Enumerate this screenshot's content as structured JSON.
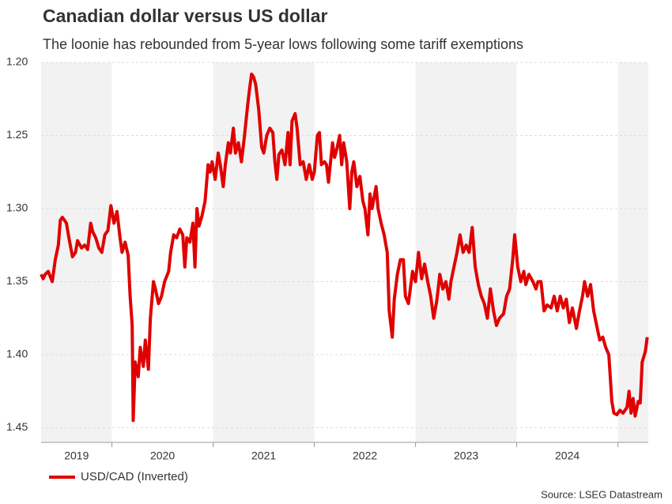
{
  "chart_data": {
    "type": "line",
    "title": "Canadian dollar versus US dollar",
    "subtitle": "The loonie has rebounded from 5-year lows following some tariff exemptions",
    "source": "Source: LSEG Datastream",
    "y_inverted": true,
    "grid": true,
    "legend": "bottom-left",
    "xlim": [
      2019.3,
      2025.3
    ],
    "xticks": [
      2020,
      2021,
      2022,
      2023,
      2024,
      2025
    ],
    "year_labels": [
      "2019",
      "2020",
      "2021",
      "2022",
      "2023",
      "2024"
    ],
    "ylim": [
      1.2,
      1.46
    ],
    "yticks": [
      {
        "value": 1.2,
        "label": "1.20"
      },
      1.25,
      {
        "value": 1.3,
        "label": "1.30"
      },
      1.35,
      {
        "value": 1.4,
        "label": "1.40"
      },
      1.45
    ],
    "x": [
      2019.3,
      2019.32,
      2019.34,
      2019.37,
      2019.41,
      2019.44,
      2019.47,
      2019.49,
      2019.51,
      2019.55,
      2019.58,
      2019.61,
      2019.64,
      2019.66,
      2019.7,
      2019.73,
      2019.76,
      2019.79,
      2019.81,
      2019.84,
      2019.87,
      2019.9,
      2019.93,
      2019.96,
      2019.99,
      2020.02,
      2020.05,
      2020.08,
      2020.1,
      2020.13,
      2020.16,
      2020.18,
      2020.2,
      2020.21,
      2020.23,
      2020.26,
      2020.28,
      2020.31,
      2020.33,
      2020.36,
      2020.38,
      2020.41,
      2020.43,
      2020.46,
      2020.49,
      2020.52,
      2020.56,
      2020.58,
      2020.61,
      2020.64,
      2020.67,
      2020.7,
      2020.72,
      2020.74,
      2020.77,
      2020.8,
      2020.82,
      2020.84,
      2020.86,
      2020.89,
      2020.92,
      2020.95,
      2020.97,
      2020.99,
      2021.02,
      2021.05,
      2021.07,
      2021.1,
      2021.12,
      2021.15,
      2021.17,
      2021.2,
      2021.22,
      2021.25,
      2021.28,
      2021.31,
      2021.34,
      2021.36,
      2021.38,
      2021.4,
      2021.42,
      2021.45,
      2021.48,
      2021.5,
      2021.53,
      2021.56,
      2021.59,
      2021.61,
      2021.63,
      2021.65,
      2021.68,
      2021.71,
      2021.74,
      2021.76,
      2021.78,
      2021.81,
      2021.83,
      2021.86,
      2021.89,
      2021.92,
      2021.95,
      2021.98,
      2022.0,
      2022.03,
      2022.05,
      2022.07,
      2022.1,
      2022.12,
      2022.14,
      2022.18,
      2022.2,
      2022.22,
      2022.25,
      2022.27,
      2022.29,
      2022.32,
      2022.35,
      2022.37,
      2022.39,
      2022.42,
      2022.45,
      2022.48,
      2022.5,
      2022.53,
      2022.55,
      2022.57,
      2022.61,
      2022.63,
      2022.66,
      2022.69,
      2022.72,
      2022.74,
      2022.77,
      2022.79,
      2022.82,
      2022.85,
      2022.88,
      2022.9,
      2022.93,
      2022.97,
      2023.0,
      2023.03,
      2023.06,
      2023.09,
      2023.12,
      2023.15,
      2023.18,
      2023.21,
      2023.24,
      2023.27,
      2023.3,
      2023.33,
      2023.35,
      2023.38,
      2023.41,
      2023.44,
      2023.47,
      2023.5,
      2023.53,
      2023.56,
      2023.59,
      2023.62,
      2023.65,
      2023.68,
      2023.71,
      2023.74,
      2023.77,
      2023.8,
      2023.83,
      2023.87,
      2023.9,
      2023.93,
      2023.96,
      2023.98,
      2024.01,
      2024.04,
      2024.07,
      2024.09,
      2024.12,
      2024.16,
      2024.19,
      2024.21,
      2024.24,
      2024.27,
      2024.3,
      2024.34,
      2024.37,
      2024.4,
      2024.43,
      2024.46,
      2024.49,
      2024.52,
      2024.55,
      2024.59,
      2024.62,
      2024.65,
      2024.67,
      2024.7,
      2024.73,
      2024.76,
      2024.79,
      2024.82,
      2024.85,
      2024.88,
      2024.91,
      2024.94,
      2024.96,
      2024.99,
      2025.02,
      2025.05,
      2025.09,
      2025.11,
      2025.13,
      2025.15,
      2025.17,
      2025.2,
      2025.22,
      2025.24,
      2025.27,
      2025.29
    ],
    "series": [
      {
        "name": "USD/CAD (Inverted)",
        "color": "#e00000",
        "values": [
          1.345,
          1.348,
          1.345,
          1.343,
          1.35,
          1.335,
          1.325,
          1.308,
          1.306,
          1.31,
          1.322,
          1.333,
          1.33,
          1.322,
          1.327,
          1.325,
          1.328,
          1.31,
          1.316,
          1.32,
          1.327,
          1.33,
          1.318,
          1.315,
          1.298,
          1.31,
          1.302,
          1.32,
          1.33,
          1.323,
          1.332,
          1.36,
          1.38,
          1.445,
          1.405,
          1.415,
          1.395,
          1.408,
          1.39,
          1.41,
          1.375,
          1.35,
          1.355,
          1.365,
          1.36,
          1.35,
          1.343,
          1.33,
          1.318,
          1.32,
          1.314,
          1.318,
          1.34,
          1.32,
          1.323,
          1.31,
          1.34,
          1.3,
          1.312,
          1.305,
          1.295,
          1.27,
          1.275,
          1.268,
          1.28,
          1.262,
          1.27,
          1.285,
          1.27,
          1.255,
          1.262,
          1.245,
          1.262,
          1.255,
          1.268,
          1.25,
          1.23,
          1.218,
          1.208,
          1.21,
          1.215,
          1.232,
          1.258,
          1.262,
          1.25,
          1.245,
          1.248,
          1.268,
          1.28,
          1.263,
          1.26,
          1.27,
          1.248,
          1.27,
          1.24,
          1.235,
          1.245,
          1.27,
          1.268,
          1.28,
          1.27,
          1.28,
          1.275,
          1.25,
          1.248,
          1.27,
          1.268,
          1.27,
          1.282,
          1.255,
          1.265,
          1.26,
          1.25,
          1.27,
          1.255,
          1.268,
          1.3,
          1.275,
          1.268,
          1.285,
          1.278,
          1.295,
          1.3,
          1.318,
          1.29,
          1.3,
          1.285,
          1.3,
          1.31,
          1.318,
          1.33,
          1.37,
          1.388,
          1.362,
          1.345,
          1.335,
          1.335,
          1.36,
          1.365,
          1.343,
          1.35,
          1.33,
          1.348,
          1.338,
          1.35,
          1.36,
          1.375,
          1.363,
          1.345,
          1.355,
          1.35,
          1.362,
          1.35,
          1.34,
          1.33,
          1.318,
          1.33,
          1.325,
          1.33,
          1.313,
          1.34,
          1.352,
          1.36,
          1.365,
          1.375,
          1.355,
          1.37,
          1.38,
          1.375,
          1.372,
          1.36,
          1.355,
          1.335,
          1.318,
          1.34,
          1.35,
          1.343,
          1.352,
          1.345,
          1.35,
          1.355,
          1.35,
          1.35,
          1.37,
          1.366,
          1.368,
          1.36,
          1.37,
          1.36,
          1.368,
          1.362,
          1.378,
          1.368,
          1.382,
          1.37,
          1.36,
          1.35,
          1.36,
          1.352,
          1.37,
          1.38,
          1.39,
          1.388,
          1.395,
          1.4,
          1.432,
          1.44,
          1.441,
          1.438,
          1.44,
          1.436,
          1.425,
          1.44,
          1.43,
          1.442,
          1.432,
          1.433,
          1.405,
          1.398,
          1.388
        ]
      }
    ]
  }
}
